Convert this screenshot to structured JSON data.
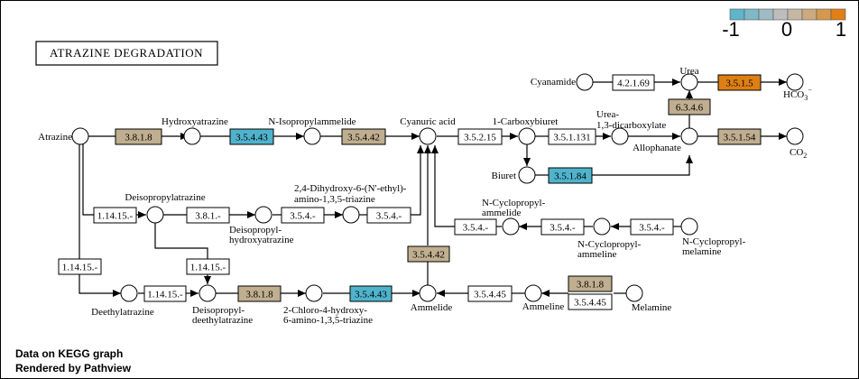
{
  "title": "ATRAZINE DEGRADATION",
  "footer": {
    "line1": "Data on KEGG graph",
    "line2": "Rendered by Pathview"
  },
  "legend": {
    "ticks": [
      "-1",
      "0",
      "1"
    ],
    "colors": [
      "#5fb5c9",
      "#7fb8c6",
      "#9fbcc4",
      "#bdbdbd",
      "#c6b7a4",
      "#cda97f",
      "#d4984f",
      "#df7f16"
    ]
  },
  "colors": {
    "up": "#de7f14",
    "down": "#4fb3cc",
    "neutral": "#bfae8f",
    "none": "#ffffff"
  },
  "compounds": {
    "atrazine": "Atrazine",
    "hydroxyatrazine": "Hydroxyatrazine",
    "n_isopropylammelide": "N-Isopropylammelide",
    "cyanuric_acid": "Cyanuric acid",
    "carboxybiuret": "1-Carboxybiuret",
    "urea_dicarboxylate_1": "Urea-",
    "urea_dicarboxylate_2": "1,3-dicarboxylate",
    "allophanate": "Allophanate",
    "co2": "CO",
    "co2_sub": "2",
    "urea": "Urea",
    "hco3": "HCO",
    "hco3_sub": "3",
    "hco3_sup": "−",
    "cyanamide": "Cyanamide",
    "biuret": "Biuret",
    "deisopropylatrazine": "Deisopropylatrazine",
    "dihydroxy_1": "2,4-Dihydroxy-6-(N'-ethyl)-",
    "dihydroxy_2": "amino-1,3,5-triazine",
    "deisopropylhydroxy_1": "Deisopropyl-",
    "deisopropylhydroxy_2": "hydroxyatrazine",
    "ncp_ammelide_1": "N-Cyclopropyl-",
    "ncp_ammelide_2": "ammelide",
    "ncp_ammeline_1": "N-Cyclopropyl-",
    "ncp_ammeline_2": "ammeline",
    "ncp_melamine_1": "N-Cyclopropyl-",
    "ncp_melamine_2": "melamine",
    "deethylatrazine": "Deethylatrazine",
    "deisopropyldeethyl_1": "Deisopropyl-",
    "deisopropyldeethyl_2": "deethylatrazine",
    "chloro_hydroxy_1": "2-Chloro-4-hydroxy-",
    "chloro_hydroxy_2": "6-amino-1,3,5-triazine",
    "ammelide": "Ammelide",
    "ammeline": "Ammeline",
    "melamine": "Melamine"
  },
  "enzymes": {
    "e_3818_a": {
      "label": "3.8.1.8",
      "state": "neutral"
    },
    "e_35443_a": {
      "label": "3.5.4.43",
      "state": "down"
    },
    "e_35442_a": {
      "label": "3.5.4.42",
      "state": "neutral"
    },
    "e_35215": {
      "label": "3.5.2.15",
      "state": "none"
    },
    "e_351131": {
      "label": "3.5.1.131",
      "state": "none"
    },
    "e_35154": {
      "label": "3.5.1.54",
      "state": "neutral"
    },
    "e_42169": {
      "label": "4.2.1.69",
      "state": "none"
    },
    "e_3515": {
      "label": "3.5.1.5",
      "state": "up"
    },
    "e_6346": {
      "label": "6.3.4.6",
      "state": "neutral"
    },
    "e_35184": {
      "label": "3.5.1.84",
      "state": "down"
    },
    "e_11415_a": {
      "label": "1.14.15.-",
      "state": "none"
    },
    "e_381": {
      "label": "3.8.1.-",
      "state": "none"
    },
    "e_354_a": {
      "label": "3.5.4.-",
      "state": "none"
    },
    "e_354_b": {
      "label": "3.5.4.-",
      "state": "none"
    },
    "e_354_c": {
      "label": "3.5.4.-",
      "state": "none"
    },
    "e_354_d": {
      "label": "3.5.4.-",
      "state": "none"
    },
    "e_354_e": {
      "label": "3.5.4.-",
      "state": "none"
    },
    "e_11415_b": {
      "label": "1.14.15.-",
      "state": "none"
    },
    "e_11415_c": {
      "label": "1.14.15.-",
      "state": "none"
    },
    "e_11415_d": {
      "label": "1.14.15.-",
      "state": "none"
    },
    "e_3818_b": {
      "label": "3.8.1.8",
      "state": "neutral"
    },
    "e_35443_b": {
      "label": "3.5.4.43",
      "state": "down"
    },
    "e_35442_b": {
      "label": "3.5.4.42",
      "state": "neutral"
    },
    "e_35445_a": {
      "label": "3.5.4.45",
      "state": "none"
    },
    "e_3818_c": {
      "label": "3.8.1.8",
      "state": "neutral"
    },
    "e_35445_b": {
      "label": "3.5.4.45",
      "state": "none"
    }
  }
}
